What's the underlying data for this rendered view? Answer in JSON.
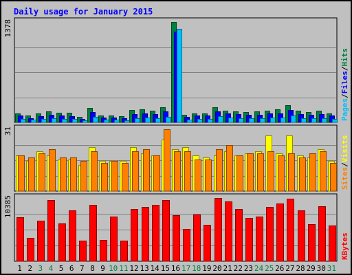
{
  "chart_data": {
    "type": "bar",
    "title": "Daily usage for January 2015",
    "categories": [
      "1",
      "2",
      "3",
      "4",
      "5",
      "6",
      "7",
      "8",
      "9",
      "10",
      "11",
      "12",
      "13",
      "14",
      "15",
      "16",
      "17",
      "18",
      "19",
      "20",
      "21",
      "22",
      "23",
      "24",
      "25",
      "26",
      "27",
      "28",
      "29",
      "30",
      "31"
    ],
    "weekend_days": [
      "3",
      "4",
      "10",
      "11",
      "17",
      "18",
      "24",
      "25",
      "31"
    ],
    "panels": [
      {
        "id": "hits-files-pages",
        "max_label": "1378",
        "ylim": [
          0,
          1378
        ],
        "legend": [
          "Pages",
          "/",
          "Files",
          "/",
          "Hits"
        ],
        "series": [
          {
            "name": "Hits",
            "color": "#008040",
            "values": [
              120,
              95,
              125,
              150,
              130,
              130,
              80,
              200,
              90,
              95,
              85,
              170,
              175,
              165,
              205,
              1378,
              100,
              125,
              120,
              205,
              160,
              150,
              140,
              150,
              165,
              175,
              240,
              160,
              140,
              160,
              120
            ]
          },
          {
            "name": "Files",
            "color": "#0000ff",
            "values": [
              90,
              60,
              85,
              100,
              90,
              85,
              50,
              140,
              70,
              65,
              60,
              115,
              120,
              115,
              150,
              1250,
              75,
              90,
              90,
              150,
              120,
              110,
              100,
              105,
              120,
              125,
              170,
              110,
              100,
              115,
              90
            ]
          },
          {
            "name": "Pages",
            "color": "#00c0ff",
            "values": [
              45,
              35,
              50,
              55,
              45,
              45,
              25,
              75,
              40,
              35,
              30,
              60,
              65,
              60,
              80,
              1280,
              35,
              50,
              45,
              85,
              65,
              60,
              55,
              60,
              65,
              70,
              95,
              60,
              55,
              60,
              45
            ]
          }
        ]
      },
      {
        "id": "visits-sites",
        "max_label": "31",
        "ylim": [
          0,
          31
        ],
        "legend": [
          "Sites",
          "/",
          "Visits"
        ],
        "series": [
          {
            "name": "Visits",
            "color": "#ffff00",
            "values": [
              18,
              15,
              20,
              18,
              16,
              16,
              13,
              22,
              15,
              15,
              15,
              22,
              19,
              18,
              26,
              21,
              22,
              18,
              17,
              18,
              20,
              18,
              19,
              20,
              28,
              19,
              28,
              18,
              17,
              21,
              15
            ]
          },
          {
            "name": "Sites",
            "color": "#ff8000",
            "values": [
              18,
              17,
              19,
              21,
              17,
              17,
              15,
              20,
              14,
              15,
              14,
              20,
              21,
              18,
              31,
              20,
              20,
              16,
              16,
              21,
              23,
              18,
              19,
              19,
              20,
              18,
              19,
              17,
              19,
              20,
              14
            ]
          }
        ]
      },
      {
        "id": "kbytes",
        "max_label": "10385",
        "ylim": [
          0,
          10385
        ],
        "legend": [
          "KBytes"
        ],
        "series": [
          {
            "name": "KBytes",
            "color": "#ff0000",
            "values": [
              7200,
              3800,
              6700,
              10100,
              6200,
              8300,
              3400,
              9300,
              3500,
              7300,
              3400,
              8600,
              8900,
              9300,
              10000,
              7600,
              5300,
              7700,
              6000,
              10385,
              9800,
              8600,
              7100,
              7300,
              8900,
              9500,
              10300,
              8300,
              6100,
              9000,
              5900
            ]
          }
        ]
      }
    ]
  }
}
